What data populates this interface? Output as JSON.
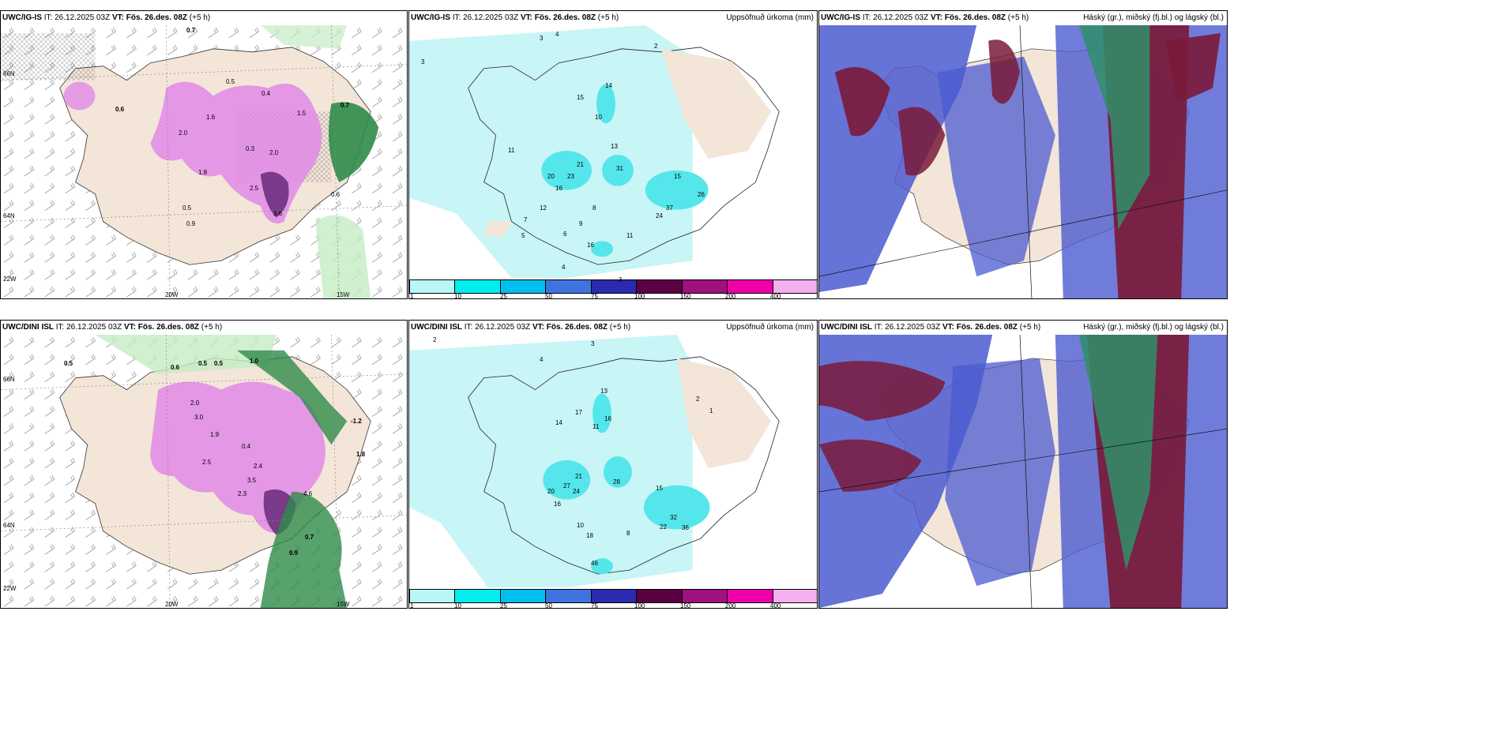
{
  "panels": [
    {
      "id": "top-left",
      "model": "UWC/IG-IS",
      "init_label": "IT:",
      "init_time": "26.12.2025 03Z",
      "valid_label": "VT:",
      "valid_time": "Fös. 26.des. 08Z",
      "lead": "(+5 h)",
      "title_right": "",
      "lon_labels": [
        "20W",
        "15W"
      ],
      "lat_labels": [
        "66N",
        "64N",
        "22W"
      ],
      "values": [
        "0.7",
        "0.6",
        "0.7",
        "0.5",
        "0.4",
        "1.6",
        "1.5",
        "2.0",
        "0.3",
        "2.5",
        "3.6",
        "0.6",
        "1.8",
        "2.0",
        "0.5",
        "0.9"
      ]
    },
    {
      "id": "top-mid",
      "model": "UWC/IG-IS",
      "init_label": "IT:",
      "init_time": "26.12.2025 03Z",
      "valid_label": "VT:",
      "valid_time": "Fös. 26.des. 08Z",
      "lead": "(+5 h)",
      "title_right": "Uppsöfnuð úrkoma (mm)",
      "values": [
        "3",
        "4",
        "2",
        "3",
        "15",
        "14",
        "13",
        "11",
        "10",
        "16",
        "21",
        "23",
        "20",
        "31",
        "15",
        "26",
        "24",
        "37",
        "12",
        "9",
        "8",
        "6",
        "7",
        "5",
        "16",
        "11",
        "4",
        "3"
      ]
    },
    {
      "id": "top-right",
      "model": "UWC/IG-IS",
      "init_label": "IT:",
      "init_time": "26.12.2025 03Z",
      "valid_label": "VT:",
      "valid_time": "Fös. 26.des. 08Z",
      "lead": "(+5 h)",
      "title_right": "Háský (gr.), miðský (fj.bl.) og lágský (bl.)"
    },
    {
      "id": "bottom-left",
      "model": "UWC/DINI ISL",
      "init_label": "IT:",
      "init_time": "26.12.2025 03Z",
      "valid_label": "VT:",
      "valid_time": "Fös. 26.des. 08Z",
      "lead": "(+5 h)",
      "title_right": "",
      "lon_labels": [
        "20W",
        "15W"
      ],
      "lat_labels": [
        "66N",
        "64N",
        "22W"
      ],
      "values": [
        "0.5",
        "1.0",
        "0.6",
        "0.5",
        "2.0",
        "1.9",
        "3.0",
        "2.5",
        "0.4",
        "2.4",
        "3.5",
        "2.3",
        "4.6",
        "0.7",
        "0.9",
        "-1.2",
        "1.8",
        "0.5"
      ]
    },
    {
      "id": "bottom-mid",
      "model": "UWC/DINI ISL",
      "init_label": "IT:",
      "init_time": "26.12.2025 03Z",
      "valid_label": "VT:",
      "valid_time": "Fös. 26.des. 08Z",
      "lead": "(+5 h)",
      "title_right": "Uppsöfnuð úrkoma (mm)",
      "values": [
        "2",
        "3",
        "4",
        "13",
        "17",
        "16",
        "11",
        "14",
        "27",
        "21",
        "24",
        "28",
        "20",
        "16",
        "32",
        "36",
        "22",
        "15",
        "10",
        "8",
        "18",
        "46",
        "1",
        "2"
      ]
    },
    {
      "id": "bottom-right",
      "model": "UWC/DINI ISL",
      "init_label": "IT:",
      "init_time": "26.12.2025 03Z",
      "valid_label": "VT:",
      "valid_time": "Fös. 26.des. 08Z",
      "lead": "(+5 h)",
      "title_right": "Háský (gr.), miðský (fj.bl.) og lágský (bl.)"
    }
  ],
  "colorbar": {
    "ticks": [
      "1",
      "10",
      "25",
      "50",
      "75",
      "100",
      "150",
      "200",
      "400"
    ],
    "colors": [
      "#b9f6f6",
      "#00eeee",
      "#00bfee",
      "#3f74e0",
      "#2b2bb0",
      "#5c0044",
      "#a0107e",
      "#ee00aa",
      "#f2b0ee"
    ]
  },
  "palette": {
    "land": "#f3e5d8",
    "precip_light": "#c8f5f5",
    "precip_mid": "#55e6ec",
    "snow_light": "#e08ae8",
    "snow_dark": "#7a3a8a",
    "rain_green": "#2e8b4a",
    "rain_light": "#c4ecc4",
    "cloud_low": "#4b5bd0",
    "cloud_mid": "#7a1a3a",
    "cloud_high": "#2f8f6a"
  }
}
